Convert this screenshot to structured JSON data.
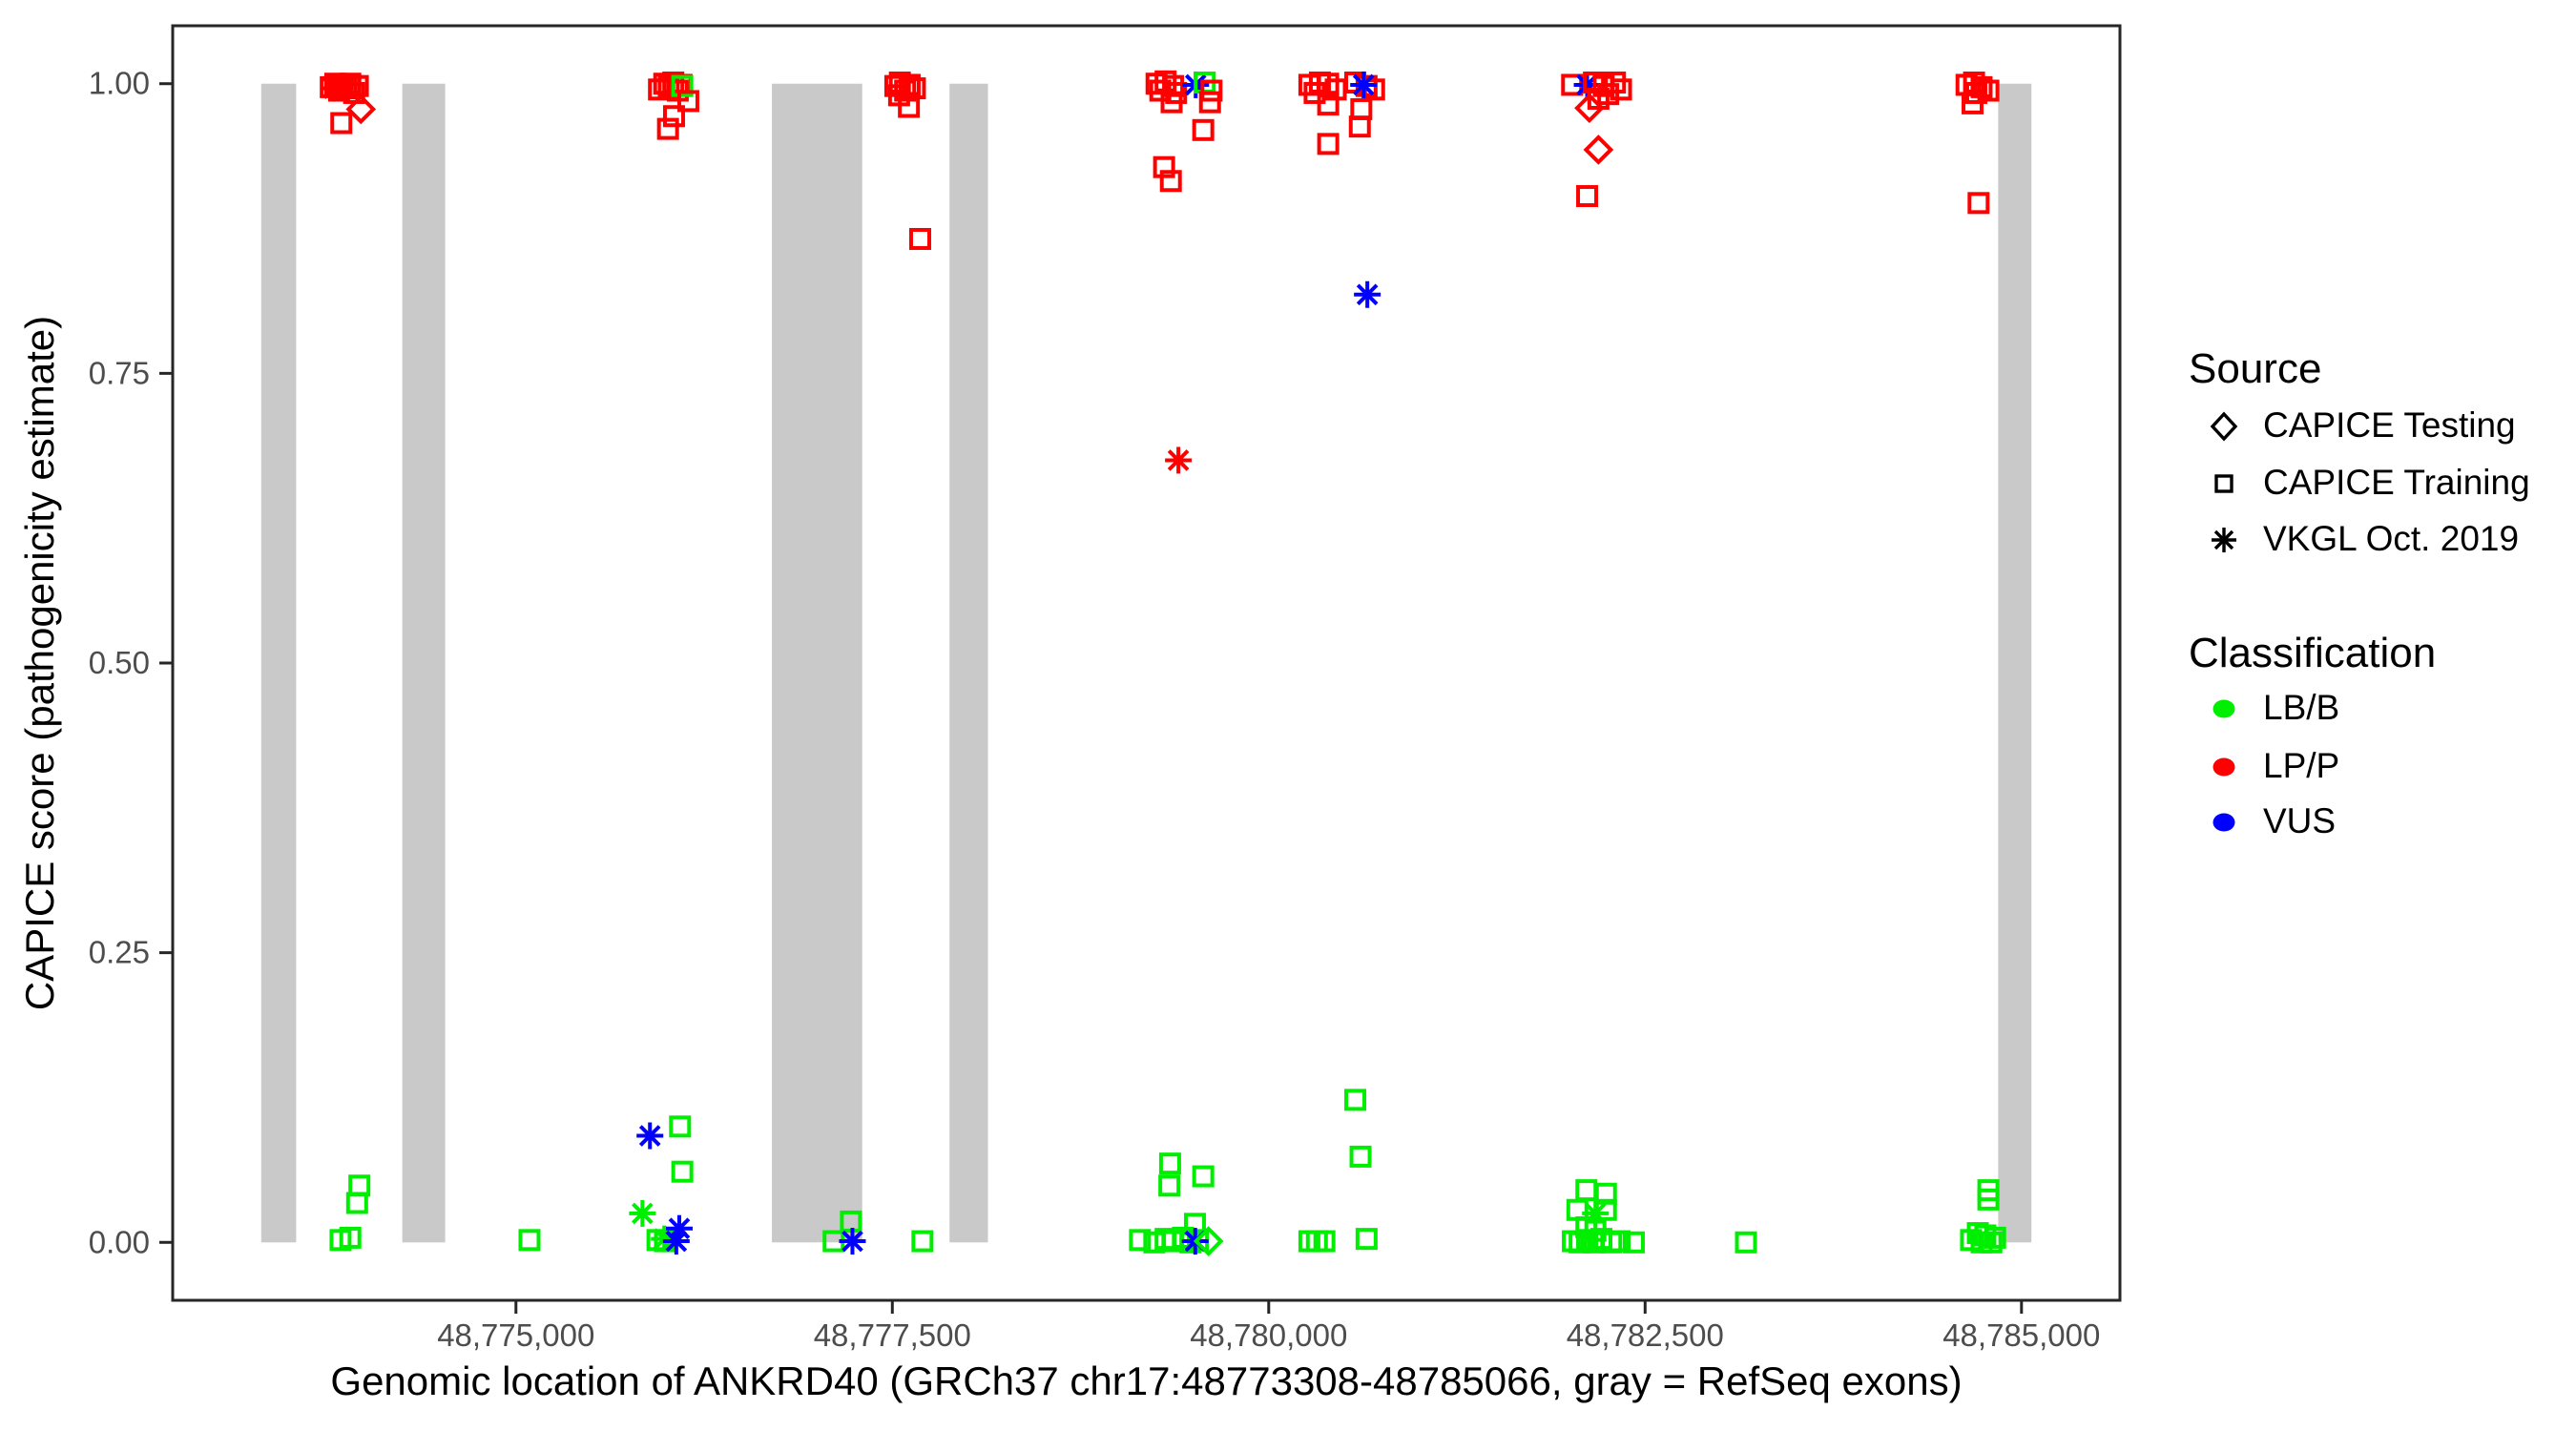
{
  "chart_data": {
    "type": "scatter",
    "title": "",
    "xlabel": "Genomic location of ANKRD40 (GRCh37 chr17:48773308-48785066, gray = RefSeq exons)",
    "ylabel": "CAPICE score (pathogenicity estimate)",
    "x_domain": [
      48772720,
      48785654
    ],
    "y_domain": [
      -0.05,
      1.05
    ],
    "grid": "off",
    "x_ticks": [
      {
        "value": 48775000,
        "label": "48,775,000"
      },
      {
        "value": 48777500,
        "label": "48,777,500"
      },
      {
        "value": 48780000,
        "label": "48,780,000"
      },
      {
        "value": 48782500,
        "label": "48,782,500"
      },
      {
        "value": 48785000,
        "label": "48,785,000"
      }
    ],
    "y_ticks": [
      {
        "value": 0.0,
        "label": "0.00"
      },
      {
        "value": 0.25,
        "label": "0.25"
      },
      {
        "value": 0.5,
        "label": "0.50"
      },
      {
        "value": 0.75,
        "label": "0.75"
      },
      {
        "value": 1.0,
        "label": "1.00"
      }
    ],
    "exon_note": "gray = RefSeq exons",
    "exons": [
      [
        48773308,
        48773540
      ],
      [
        48774245,
        48774530
      ],
      [
        48776700,
        48777300
      ],
      [
        48777880,
        48778135
      ],
      [
        48784845,
        48785066
      ]
    ],
    "colors": {
      "exon": "#C9C9C9",
      "tick_label": "#4D4D4D",
      "panel_border": "#262626",
      "LB/B": "#00EE00",
      "LP/P": "#FF0000",
      "VUS": "#0000FF"
    },
    "shapes": {
      "testing": "diamond",
      "training": "square",
      "vkgl": "asterisk"
    },
    "points": [
      [
        48773770,
        0.997,
        "training",
        "LP/P"
      ],
      [
        48773800,
        1.0,
        "training",
        "LP/P"
      ],
      [
        48773825,
        0.994,
        "training",
        "LP/P"
      ],
      [
        48773850,
        0.999,
        "training",
        "LP/P"
      ],
      [
        48773875,
        0.996,
        "training",
        "LP/P"
      ],
      [
        48773900,
        1.0,
        "training",
        "LP/P"
      ],
      [
        48773925,
        0.992,
        "training",
        "LP/P"
      ],
      [
        48773950,
        0.998,
        "training",
        "LP/P"
      ],
      [
        48773790,
        0.996,
        "vkgl",
        "LP/P"
      ],
      [
        48773970,
        0.978,
        "testing",
        "LP/P"
      ],
      [
        48773840,
        0.966,
        "training",
        "LP/P"
      ],
      [
        48773960,
        0.049,
        "training",
        "LB/B"
      ],
      [
        48773945,
        0.034,
        "training",
        "LB/B"
      ],
      [
        48773835,
        0.002,
        "training",
        "LB/B"
      ],
      [
        48773900,
        0.004,
        "training",
        "LB/B"
      ],
      [
        48775090,
        0.002,
        "training",
        "LB/B"
      ],
      [
        48775950,
        0.995,
        "training",
        "LP/P"
      ],
      [
        48775985,
        1.0,
        "training",
        "LP/P"
      ],
      [
        48776015,
        0.997,
        "training",
        "LP/P"
      ],
      [
        48776045,
        1.001,
        "training",
        "LP/P"
      ],
      [
        48776075,
        0.994,
        "training",
        "LP/P"
      ],
      [
        48776100,
        0.999,
        "training",
        "LP/P"
      ],
      [
        48776105,
        0.998,
        "training",
        "LB/B"
      ],
      [
        48776145,
        0.985,
        "training",
        "LP/P"
      ],
      [
        48776050,
        0.972,
        "training",
        "LP/P"
      ],
      [
        48776010,
        0.961,
        "training",
        "LP/P"
      ],
      [
        48775890,
        0.092,
        "vkgl",
        "VUS"
      ],
      [
        48776090,
        0.1,
        "training",
        "LB/B"
      ],
      [
        48776105,
        0.061,
        "training",
        "LB/B"
      ],
      [
        48775840,
        0.025,
        "vkgl",
        "LB/B"
      ],
      [
        48775940,
        0.002,
        "training",
        "LB/B"
      ],
      [
        48775990,
        0.001,
        "training",
        "LB/B"
      ],
      [
        48775985,
        0.003,
        "vkgl",
        "LB/B"
      ],
      [
        48776085,
        0.012,
        "vkgl",
        "VUS"
      ],
      [
        48776065,
        0.001,
        "vkgl",
        "VUS"
      ],
      [
        48777520,
        0.998,
        "training",
        "LP/P"
      ],
      [
        48777550,
        1.001,
        "training",
        "LP/P"
      ],
      [
        48777585,
        0.994,
        "training",
        "LP/P"
      ],
      [
        48777615,
        0.999,
        "training",
        "LP/P"
      ],
      [
        48777650,
        0.996,
        "training",
        "LP/P"
      ],
      [
        48777545,
        0.99,
        "training",
        "LP/P"
      ],
      [
        48777610,
        0.98,
        "training",
        "LP/P"
      ],
      [
        48777685,
        0.866,
        "training",
        "LP/P"
      ],
      [
        48777110,
        0.001,
        "training",
        "LB/B"
      ],
      [
        48777225,
        0.018,
        "training",
        "LB/B"
      ],
      [
        48777235,
        0.001,
        "vkgl",
        "VUS"
      ],
      [
        48777700,
        0.001,
        "training",
        "LB/B"
      ],
      [
        48779255,
        1.0,
        "training",
        "LP/P"
      ],
      [
        48779315,
        1.002,
        "training",
        "LP/P"
      ],
      [
        48779365,
        0.998,
        "training",
        "LP/P"
      ],
      [
        48779280,
        0.994,
        "training",
        "LP/P"
      ],
      [
        48779385,
        0.992,
        "training",
        "LP/P"
      ],
      [
        48779355,
        0.984,
        "training",
        "LP/P"
      ],
      [
        48779515,
        0.999,
        "vkgl",
        "VUS"
      ],
      [
        48779575,
        1.001,
        "training",
        "LB/B"
      ],
      [
        48779620,
        0.994,
        "training",
        "LP/P"
      ],
      [
        48779610,
        0.984,
        "training",
        "LP/P"
      ],
      [
        48779565,
        0.96,
        "training",
        "LP/P"
      ],
      [
        48779305,
        0.928,
        "training",
        "LP/P"
      ],
      [
        48779350,
        0.916,
        "training",
        "LP/P"
      ],
      [
        48779400,
        0.675,
        "vkgl",
        "LP/P"
      ],
      [
        48779345,
        0.068,
        "training",
        "LB/B"
      ],
      [
        48779565,
        0.057,
        "training",
        "LB/B"
      ],
      [
        48779340,
        0.049,
        "training",
        "LB/B"
      ],
      [
        48779145,
        0.002,
        "training",
        "LB/B"
      ],
      [
        48779240,
        0.0,
        "training",
        "LB/B"
      ],
      [
        48779315,
        0.003,
        "training",
        "LB/B"
      ],
      [
        48779365,
        0.001,
        "training",
        "LB/B"
      ],
      [
        48779430,
        0.004,
        "training",
        "LB/B"
      ],
      [
        48779480,
        0.0,
        "training",
        "LB/B"
      ],
      [
        48779530,
        0.002,
        "training",
        "LB/B"
      ],
      [
        48779510,
        0.016,
        "training",
        "LB/B"
      ],
      [
        48779512,
        0.001,
        "vkgl",
        "VUS"
      ],
      [
        48779600,
        0.001,
        "testing",
        "LB/B"
      ],
      [
        48780270,
        0.999,
        "training",
        "LP/P"
      ],
      [
        48780340,
        1.001,
        "training",
        "LP/P"
      ],
      [
        48780395,
        1.0,
        "training",
        "LP/P"
      ],
      [
        48780445,
        0.995,
        "training",
        "LP/P"
      ],
      [
        48780305,
        0.992,
        "training",
        "LP/P"
      ],
      [
        48780395,
        0.982,
        "training",
        "LP/P"
      ],
      [
        48780575,
        1.001,
        "training",
        "LP/P"
      ],
      [
        48780650,
        0.998,
        "training",
        "LP/P"
      ],
      [
        48780700,
        0.995,
        "training",
        "LP/P"
      ],
      [
        48780630,
        0.999,
        "vkgl",
        "VUS"
      ],
      [
        48780615,
        0.978,
        "training",
        "LP/P"
      ],
      [
        48780605,
        0.963,
        "training",
        "LP/P"
      ],
      [
        48780395,
        0.948,
        "training",
        "LP/P"
      ],
      [
        48780655,
        0.818,
        "vkgl",
        "VUS"
      ],
      [
        48780575,
        0.123,
        "training",
        "LB/B"
      ],
      [
        48780610,
        0.074,
        "training",
        "LB/B"
      ],
      [
        48780270,
        0.001,
        "training",
        "LB/B"
      ],
      [
        48780320,
        0.001,
        "training",
        "LB/B"
      ],
      [
        48780370,
        0.001,
        "training",
        "LB/B"
      ],
      [
        48780650,
        0.003,
        "training",
        "LB/B"
      ],
      [
        48782015,
        0.999,
        "training",
        "LP/P"
      ],
      [
        48782115,
        0.999,
        "vkgl",
        "VUS"
      ],
      [
        48782160,
        1.001,
        "training",
        "LP/P"
      ],
      [
        48782225,
        0.998,
        "training",
        "LP/P"
      ],
      [
        48782300,
        1.001,
        "training",
        "LP/P"
      ],
      [
        48782340,
        0.995,
        "training",
        "LP/P"
      ],
      [
        48782255,
        0.991,
        "training",
        "LP/P"
      ],
      [
        48782190,
        0.987,
        "training",
        "LP/P"
      ],
      [
        48782130,
        0.979,
        "testing",
        "LP/P"
      ],
      [
        48782190,
        0.943,
        "testing",
        "LP/P"
      ],
      [
        48782115,
        0.903,
        "training",
        "LP/P"
      ],
      [
        48782110,
        0.045,
        "training",
        "LB/B"
      ],
      [
        48782240,
        0.042,
        "training",
        "LB/B"
      ],
      [
        48782050,
        0.028,
        "training",
        "LB/B"
      ],
      [
        48782240,
        0.028,
        "training",
        "LB/B"
      ],
      [
        48782170,
        0.025,
        "vkgl",
        "LB/B"
      ],
      [
        48782110,
        0.013,
        "training",
        "LB/B"
      ],
      [
        48782170,
        0.01,
        "training",
        "LB/B"
      ],
      [
        48782020,
        0.001,
        "training",
        "LB/B"
      ],
      [
        48782065,
        0.0,
        "training",
        "LB/B"
      ],
      [
        48782115,
        0.002,
        "training",
        "LB/B"
      ],
      [
        48782160,
        0.0,
        "training",
        "LB/B"
      ],
      [
        48782210,
        0.003,
        "training",
        "LB/B"
      ],
      [
        48782275,
        0.0,
        "training",
        "LB/B"
      ],
      [
        48782330,
        0.001,
        "training",
        "LB/B"
      ],
      [
        48782425,
        0.0,
        "training",
        "LB/B"
      ],
      [
        48783170,
        0.0,
        "training",
        "LB/B"
      ],
      [
        48784635,
        0.999,
        "training",
        "LP/P"
      ],
      [
        48784685,
        1.001,
        "training",
        "LP/P"
      ],
      [
        48784735,
        0.997,
        "training",
        "LP/P"
      ],
      [
        48784780,
        0.994,
        "training",
        "LP/P"
      ],
      [
        48784700,
        0.992,
        "training",
        "LP/P"
      ],
      [
        48784675,
        0.983,
        "training",
        "LP/P"
      ],
      [
        48784715,
        0.897,
        "training",
        "LP/P"
      ],
      [
        48784780,
        0.045,
        "training",
        "LB/B"
      ],
      [
        48784780,
        0.037,
        "training",
        "LB/B"
      ],
      [
        48784665,
        0.002,
        "training",
        "LB/B"
      ],
      [
        48784710,
        0.008,
        "training",
        "LB/B"
      ],
      [
        48784760,
        0.006,
        "training",
        "LB/B"
      ],
      [
        48784800,
        0.0,
        "training",
        "LB/B"
      ],
      [
        48784825,
        0.004,
        "training",
        "LB/B"
      ],
      [
        48784735,
        0.0,
        "training",
        "LB/B"
      ]
    ]
  },
  "legend": {
    "source": {
      "title": "Source",
      "items": [
        {
          "label": "CAPICE Testing",
          "shape": "diamond"
        },
        {
          "label": "CAPICE Training",
          "shape": "square"
        },
        {
          "label": "VKGL Oct. 2019",
          "shape": "asterisk"
        }
      ]
    },
    "classification": {
      "title": "Classification",
      "items": [
        {
          "label": "LB/B",
          "color": "#00EE00"
        },
        {
          "label": "LP/P",
          "color": "#FF0000"
        },
        {
          "label": "VUS",
          "color": "#0000FF"
        }
      ]
    }
  }
}
